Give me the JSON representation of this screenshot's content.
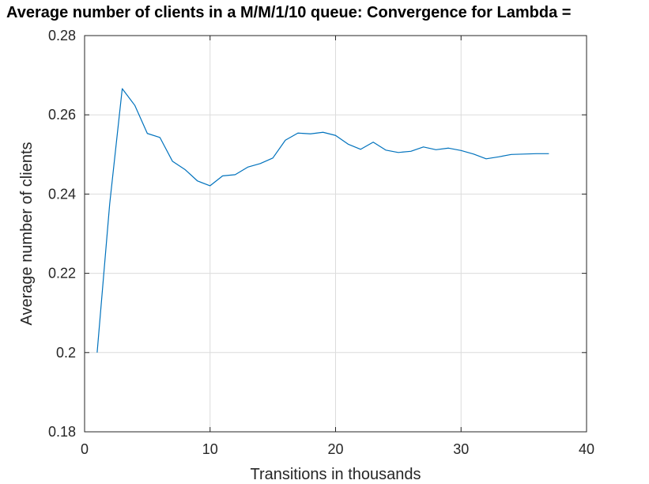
{
  "chart_data": {
    "type": "line",
    "title": "Average number of clients in a M/M/1/10 queue: Convergence for Lambda = ",
    "xlabel": "Transitions in thousands",
    "ylabel": "Average number of clients",
    "xlim": [
      0,
      40
    ],
    "ylim": [
      0.18,
      0.28
    ],
    "xticks": [
      0,
      10,
      20,
      30,
      40
    ],
    "yticks": [
      0.18,
      0.2,
      0.22,
      0.24,
      0.26,
      0.28
    ],
    "xtick_labels": [
      "0",
      "10",
      "20",
      "30",
      "40"
    ],
    "ytick_labels": [
      "0.18",
      "0.2",
      "0.22",
      "0.24",
      "0.26",
      "0.28"
    ],
    "grid": true,
    "series": [
      {
        "color": "#0072BD",
        "x": [
          1,
          2,
          3,
          4,
          5,
          6,
          7,
          8,
          9,
          10,
          11,
          12,
          13,
          14,
          15,
          16,
          17,
          18,
          19,
          20,
          21,
          22,
          23,
          24,
          25,
          26,
          27,
          28,
          29,
          30,
          31,
          32,
          33,
          34,
          35,
          36,
          37
        ],
        "y": [
          0.2,
          0.2375,
          0.2666,
          0.2624,
          0.2553,
          0.2543,
          0.2483,
          0.2462,
          0.2433,
          0.2421,
          0.2446,
          0.2449,
          0.2468,
          0.2477,
          0.2491,
          0.2536,
          0.2554,
          0.2552,
          0.2556,
          0.2548,
          0.2526,
          0.2513,
          0.2531,
          0.2511,
          0.2505,
          0.2508,
          0.2519,
          0.2512,
          0.2516,
          0.251,
          0.2501,
          0.2489,
          0.2494,
          0.25,
          0.2501,
          0.2502,
          0.2502
        ]
      }
    ]
  }
}
